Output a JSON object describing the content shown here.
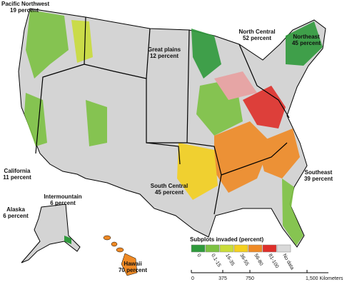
{
  "regions": [
    {
      "name": "Pacific Northwest",
      "value": "19 percent"
    },
    {
      "name": "North Central",
      "value": "52 percent"
    },
    {
      "name": "Northeast",
      "value": "45 percent"
    },
    {
      "name": "Great plains",
      "value": "12 percent"
    },
    {
      "name": "California",
      "value": "11 percent"
    },
    {
      "name": "Intermountain",
      "value": "6 percent"
    },
    {
      "name": "South Central",
      "value": "45 percent"
    },
    {
      "name": "Southeast",
      "value": "39 percent"
    },
    {
      "name": "Alaska",
      "value": "6 percent"
    },
    {
      "name": "Hawaii",
      "value": "70 percent"
    }
  ],
  "legend": {
    "title": "Subplots invaded (percent)",
    "items": [
      {
        "label": "0",
        "color": "#2f9a3c"
      },
      {
        "label": "0.1-15",
        "color": "#7dc243"
      },
      {
        "label": "16-35",
        "color": "#c9dc3a"
      },
      {
        "label": "36-55",
        "color": "#f4d01f"
      },
      {
        "label": "56-80",
        "color": "#ef8a25"
      },
      {
        "label": "81-100",
        "color": "#de2f2a"
      },
      {
        "label": "No data",
        "color": "#d9d9d9"
      }
    ]
  },
  "scale": {
    "labels": [
      "0",
      "375",
      "750",
      "1,500 Kilometers"
    ]
  }
}
